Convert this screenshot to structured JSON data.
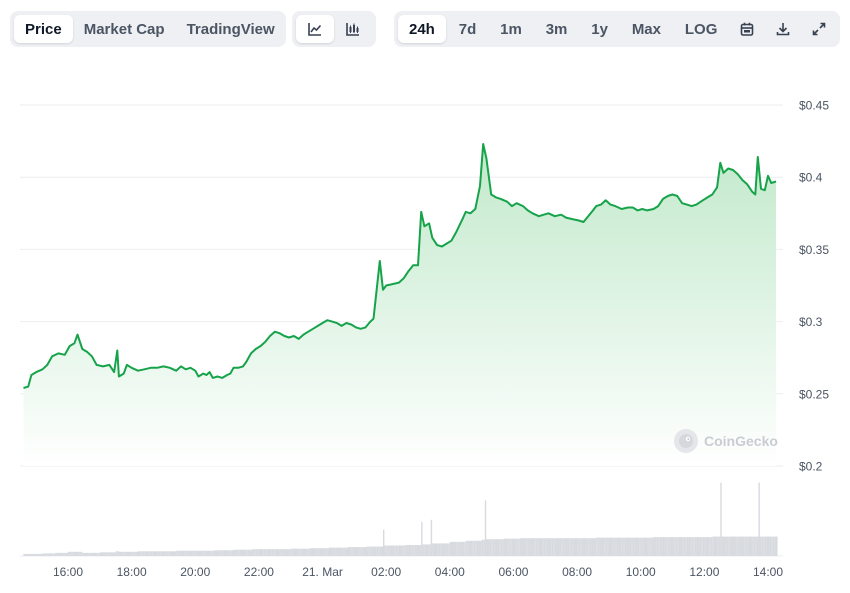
{
  "toolbar": {
    "view_tabs": [
      {
        "label": "Price",
        "active": true
      },
      {
        "label": "Market Cap",
        "active": false
      },
      {
        "label": "TradingView",
        "active": false
      }
    ],
    "chart_type_icons": [
      "line-chart-icon",
      "candlestick-chart-icon"
    ],
    "ranges": [
      {
        "label": "24h",
        "active": true
      },
      {
        "label": "7d",
        "active": false
      },
      {
        "label": "1m",
        "active": false
      },
      {
        "label": "3m",
        "active": false
      },
      {
        "label": "1y",
        "active": false
      },
      {
        "label": "Max",
        "active": false
      },
      {
        "label": "LOG",
        "active": false
      }
    ],
    "action_icons": [
      "calendar-icon",
      "download-icon",
      "expand-icon"
    ]
  },
  "watermark": {
    "text": "CoinGecko"
  },
  "colors": {
    "line": "#16a34a",
    "area_top": "#bfe8c9",
    "grid": "#eceef1",
    "volume": "#d7dadf",
    "axis_text": "#4b5563"
  },
  "chart_data": {
    "type": "area",
    "x_unit": "hours",
    "x_range": [
      14.6,
      14.25
    ],
    "x_ticks": [
      {
        "t": 16,
        "label": "16:00"
      },
      {
        "t": 18,
        "label": "18:00"
      },
      {
        "t": 20,
        "label": "20:00"
      },
      {
        "t": 22,
        "label": "22:00"
      },
      {
        "t": 24,
        "label": "21. Mar"
      },
      {
        "t": 26,
        "label": "02:00"
      },
      {
        "t": 28,
        "label": "04:00"
      },
      {
        "t": 30,
        "label": "06:00"
      },
      {
        "t": 32,
        "label": "08:00"
      },
      {
        "t": 34,
        "label": "10:00"
      },
      {
        "t": 36,
        "label": "12:00"
      },
      {
        "t": 38,
        "label": "14:00"
      }
    ],
    "ylim": [
      0.2,
      0.45
    ],
    "y_ticks": [
      {
        "v": 0.45,
        "label": "$0.45"
      },
      {
        "v": 0.4,
        "label": "$0.4"
      },
      {
        "v": 0.35,
        "label": "$0.35"
      },
      {
        "v": 0.3,
        "label": "$0.3"
      },
      {
        "v": 0.25,
        "label": "$0.25"
      },
      {
        "v": 0.2,
        "label": "$0.2"
      }
    ],
    "grid": true,
    "price": [
      [
        14.6,
        0.254
      ],
      [
        14.75,
        0.255
      ],
      [
        14.85,
        0.263
      ],
      [
        15.0,
        0.265
      ],
      [
        15.2,
        0.267
      ],
      [
        15.35,
        0.27
      ],
      [
        15.5,
        0.276
      ],
      [
        15.7,
        0.278
      ],
      [
        15.9,
        0.277
      ],
      [
        16.05,
        0.283
      ],
      [
        16.2,
        0.285
      ],
      [
        16.3,
        0.291
      ],
      [
        16.45,
        0.281
      ],
      [
        16.6,
        0.279
      ],
      [
        16.75,
        0.276
      ],
      [
        16.9,
        0.27
      ],
      [
        17.1,
        0.269
      ],
      [
        17.3,
        0.27
      ],
      [
        17.45,
        0.265
      ],
      [
        17.55,
        0.28
      ],
      [
        17.6,
        0.262
      ],
      [
        17.75,
        0.264
      ],
      [
        17.85,
        0.27
      ],
      [
        18.0,
        0.268
      ],
      [
        18.2,
        0.266
      ],
      [
        18.4,
        0.267
      ],
      [
        18.6,
        0.268
      ],
      [
        18.8,
        0.268
      ],
      [
        19.0,
        0.269
      ],
      [
        19.2,
        0.268
      ],
      [
        19.4,
        0.266
      ],
      [
        19.55,
        0.269
      ],
      [
        19.7,
        0.267
      ],
      [
        19.85,
        0.268
      ],
      [
        20.0,
        0.266
      ],
      [
        20.1,
        0.262
      ],
      [
        20.25,
        0.264
      ],
      [
        20.35,
        0.263
      ],
      [
        20.45,
        0.265
      ],
      [
        20.55,
        0.261
      ],
      [
        20.7,
        0.262
      ],
      [
        20.85,
        0.261
      ],
      [
        21.0,
        0.263
      ],
      [
        21.1,
        0.264
      ],
      [
        21.2,
        0.268
      ],
      [
        21.35,
        0.268
      ],
      [
        21.5,
        0.269
      ],
      [
        21.6,
        0.272
      ],
      [
        21.75,
        0.278
      ],
      [
        21.9,
        0.281
      ],
      [
        22.05,
        0.283
      ],
      [
        22.2,
        0.286
      ],
      [
        22.35,
        0.29
      ],
      [
        22.5,
        0.293
      ],
      [
        22.65,
        0.292
      ],
      [
        22.8,
        0.29
      ],
      [
        22.95,
        0.289
      ],
      [
        23.1,
        0.29
      ],
      [
        23.25,
        0.288
      ],
      [
        23.4,
        0.291
      ],
      [
        23.55,
        0.293
      ],
      [
        23.7,
        0.295
      ],
      [
        23.85,
        0.297
      ],
      [
        24.0,
        0.299
      ],
      [
        24.15,
        0.301
      ],
      [
        24.3,
        0.3
      ],
      [
        24.45,
        0.299
      ],
      [
        24.6,
        0.297
      ],
      [
        24.75,
        0.299
      ],
      [
        24.9,
        0.298
      ],
      [
        25.05,
        0.296
      ],
      [
        25.2,
        0.295
      ],
      [
        25.35,
        0.296
      ],
      [
        25.5,
        0.3
      ],
      [
        25.6,
        0.302
      ],
      [
        25.8,
        0.342
      ],
      [
        25.9,
        0.322
      ],
      [
        26.0,
        0.325
      ],
      [
        26.2,
        0.326
      ],
      [
        26.4,
        0.327
      ],
      [
        26.55,
        0.33
      ],
      [
        26.7,
        0.335
      ],
      [
        26.85,
        0.339
      ],
      [
        27.0,
        0.339
      ],
      [
        27.1,
        0.376
      ],
      [
        27.2,
        0.366
      ],
      [
        27.35,
        0.368
      ],
      [
        27.45,
        0.358
      ],
      [
        27.6,
        0.353
      ],
      [
        27.75,
        0.352
      ],
      [
        27.9,
        0.354
      ],
      [
        28.05,
        0.356
      ],
      [
        28.2,
        0.362
      ],
      [
        28.4,
        0.371
      ],
      [
        28.5,
        0.376
      ],
      [
        28.65,
        0.375
      ],
      [
        28.8,
        0.378
      ],
      [
        28.95,
        0.394
      ],
      [
        29.05,
        0.423
      ],
      [
        29.15,
        0.413
      ],
      [
        29.3,
        0.388
      ],
      [
        29.45,
        0.386
      ],
      [
        29.6,
        0.385
      ],
      [
        29.8,
        0.383
      ],
      [
        29.95,
        0.38
      ],
      [
        30.1,
        0.382
      ],
      [
        30.3,
        0.38
      ],
      [
        30.45,
        0.377
      ],
      [
        30.6,
        0.375
      ],
      [
        30.8,
        0.373
      ],
      [
        30.95,
        0.374
      ],
      [
        31.1,
        0.375
      ],
      [
        31.3,
        0.373
      ],
      [
        31.5,
        0.374
      ],
      [
        31.65,
        0.372
      ],
      [
        31.85,
        0.371
      ],
      [
        32.05,
        0.37
      ],
      [
        32.2,
        0.369
      ],
      [
        32.35,
        0.373
      ],
      [
        32.5,
        0.377
      ],
      [
        32.6,
        0.38
      ],
      [
        32.75,
        0.381
      ],
      [
        32.9,
        0.384
      ],
      [
        33.05,
        0.381
      ],
      [
        33.2,
        0.38
      ],
      [
        33.4,
        0.378
      ],
      [
        33.6,
        0.379
      ],
      [
        33.75,
        0.379
      ],
      [
        33.9,
        0.377
      ],
      [
        34.05,
        0.378
      ],
      [
        34.2,
        0.377
      ],
      [
        34.4,
        0.378
      ],
      [
        34.55,
        0.38
      ],
      [
        34.7,
        0.385
      ],
      [
        34.85,
        0.387
      ],
      [
        35.0,
        0.388
      ],
      [
        35.15,
        0.387
      ],
      [
        35.3,
        0.382
      ],
      [
        35.45,
        0.381
      ],
      [
        35.6,
        0.38
      ],
      [
        35.75,
        0.381
      ],
      [
        35.95,
        0.384
      ],
      [
        36.1,
        0.386
      ],
      [
        36.25,
        0.388
      ],
      [
        36.4,
        0.393
      ],
      [
        36.5,
        0.41
      ],
      [
        36.6,
        0.403
      ],
      [
        36.75,
        0.406
      ],
      [
        36.9,
        0.405
      ],
      [
        37.05,
        0.402
      ],
      [
        37.2,
        0.398
      ],
      [
        37.35,
        0.395
      ],
      [
        37.5,
        0.39
      ],
      [
        37.6,
        0.388
      ],
      [
        37.68,
        0.414
      ],
      [
        37.78,
        0.392
      ],
      [
        37.9,
        0.391
      ],
      [
        38.0,
        0.401
      ],
      [
        38.1,
        0.396
      ],
      [
        38.25,
        0.397
      ]
    ],
    "volume": [
      [
        14.6,
        0.4
      ],
      [
        15.2,
        0.5
      ],
      [
        15.6,
        0.6
      ],
      [
        16.0,
        0.8
      ],
      [
        16.45,
        1.8
      ],
      [
        16.5,
        0.6
      ],
      [
        17.0,
        0.7
      ],
      [
        17.5,
        0.9
      ],
      [
        17.6,
        2.6
      ],
      [
        17.7,
        0.8
      ],
      [
        18.2,
        0.9
      ],
      [
        18.8,
        0.9
      ],
      [
        19.4,
        1.0
      ],
      [
        20.0,
        1.0
      ],
      [
        20.6,
        1.1
      ],
      [
        21.2,
        1.2
      ],
      [
        21.8,
        1.3
      ],
      [
        22.4,
        1.3
      ],
      [
        23.0,
        1.4
      ],
      [
        23.6,
        1.5
      ],
      [
        24.2,
        1.6
      ],
      [
        24.8,
        1.7
      ],
      [
        25.4,
        1.8
      ],
      [
        25.9,
        5.0
      ],
      [
        26.0,
        2.0
      ],
      [
        26.6,
        2.1
      ],
      [
        27.1,
        6.5
      ],
      [
        27.2,
        2.2
      ],
      [
        27.4,
        6.9
      ],
      [
        27.5,
        2.4
      ],
      [
        28.0,
        2.7
      ],
      [
        28.5,
        2.9
      ],
      [
        29.0,
        3.1
      ],
      [
        29.1,
        10.6
      ],
      [
        29.2,
        3.2
      ],
      [
        29.7,
        3.3
      ],
      [
        30.2,
        3.4
      ],
      [
        30.8,
        3.4
      ],
      [
        31.4,
        3.4
      ],
      [
        32.0,
        3.4
      ],
      [
        32.6,
        3.5
      ],
      [
        33.2,
        3.5
      ],
      [
        33.8,
        3.5
      ],
      [
        34.4,
        3.6
      ],
      [
        35.0,
        3.6
      ],
      [
        35.6,
        3.6
      ],
      [
        36.2,
        3.7
      ],
      [
        36.5,
        14.0
      ],
      [
        36.6,
        3.7
      ],
      [
        37.2,
        3.7
      ],
      [
        37.7,
        14.0
      ],
      [
        37.8,
        3.7
      ],
      [
        38.25,
        3.7
      ]
    ]
  }
}
